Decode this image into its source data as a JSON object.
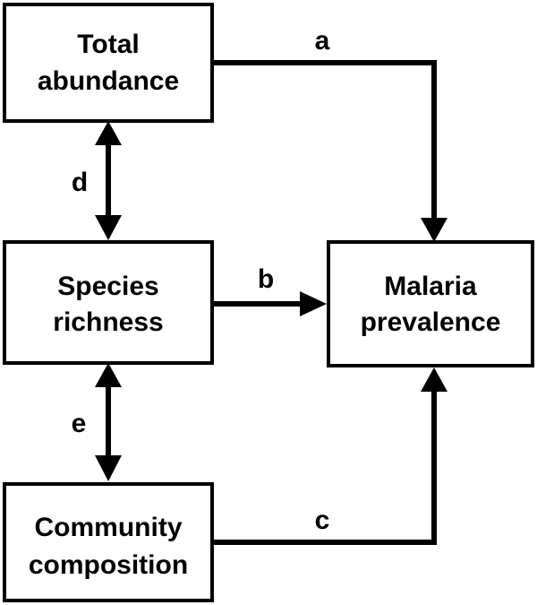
{
  "nodes": {
    "total_abundance": {
      "line1": "Total",
      "line2": "abundance"
    },
    "species_richness": {
      "line1": "Species",
      "line2": "richness"
    },
    "community_composition": {
      "line1": "Community",
      "line2": "composition"
    },
    "malaria_prevalence": {
      "line1": "Malaria",
      "line2": "prevalence"
    }
  },
  "edges": {
    "a": {
      "label": "a",
      "from": "total_abundance",
      "to": "malaria_prevalence",
      "direction": "one-way"
    },
    "b": {
      "label": "b",
      "from": "species_richness",
      "to": "malaria_prevalence",
      "direction": "one-way"
    },
    "c": {
      "label": "c",
      "from": "community_composition",
      "to": "malaria_prevalence",
      "direction": "one-way"
    },
    "d": {
      "label": "d",
      "from": "total_abundance",
      "to": "species_richness",
      "direction": "two-way"
    },
    "e": {
      "label": "e",
      "from": "species_richness",
      "to": "community_composition",
      "direction": "two-way"
    }
  },
  "colors": {
    "stroke": "#000000",
    "fill": "#ffffff"
  }
}
